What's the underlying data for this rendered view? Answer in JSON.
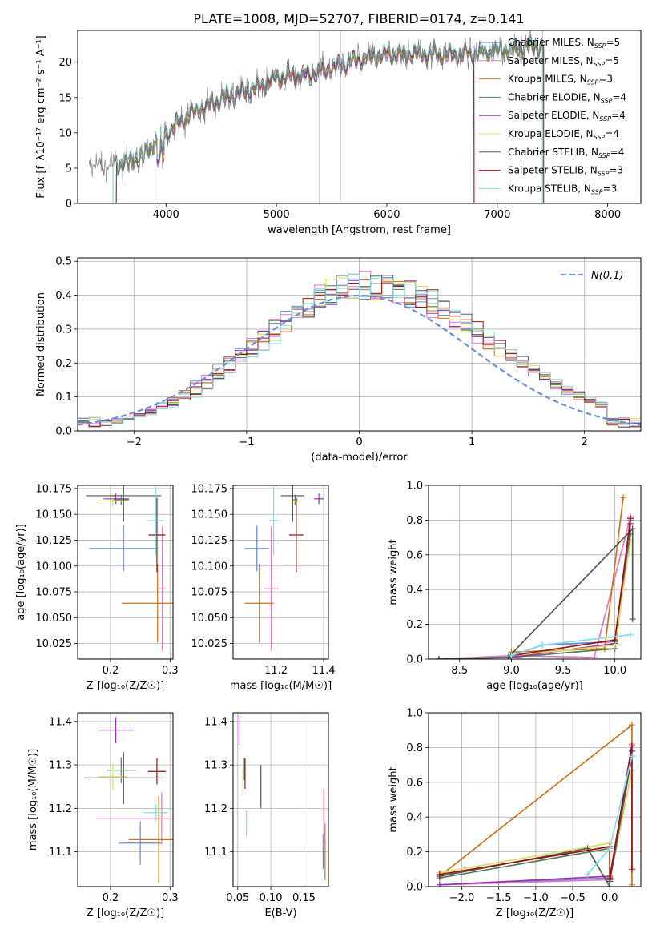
{
  "title": "PLATE=1008, MJD=52707, FIBERID=0174, z=0.141",
  "colors": {
    "chabrier_miles": "#6688cc",
    "salpeter_miles": "#e377c2",
    "kroupa_miles": "#c8741c",
    "chabrier_elodie": "#4f7f4f",
    "salpeter_elodie": "#9b30b8",
    "kroupa_elodie": "#d8e060",
    "chabrier_stelib": "#555555",
    "salpeter_stelib": "#a01010",
    "kroupa_stelib": "#7fdde6",
    "normal_curve": "#6a8ed8",
    "grid": "#b0b0b0",
    "spec_gray": "#777777"
  },
  "chart_data": [
    {
      "id": "spectrum",
      "type": "line",
      "xlabel": "wavelength [Angstrom, rest frame]",
      "ylabel": "Flux [f_λ10⁻¹⁷ erg cm⁻² s⁻¹ A⁻¹]",
      "xlim": [
        3200,
        8300
      ],
      "ylim": [
        0,
        24.5
      ],
      "xticks": [
        "4000",
        "5000",
        "6000",
        "7000",
        "8000"
      ],
      "yticks": [
        "0",
        "5",
        "10",
        "15",
        "20"
      ],
      "grid": false,
      "legend_position": "right",
      "legend": [
        {
          "sub": "Chabrier MILES, N",
          "subscript": "SSP",
          "tail": "=5"
        },
        {
          "sub": "Salpeter MILES, N",
          "subscript": "SSP",
          "tail": "=5"
        },
        {
          "sub": "Kroupa MILES, N",
          "subscript": "SSP",
          "tail": "=3"
        },
        {
          "sub": "Chabrier ELODIE, N",
          "subscript": "SSP",
          "tail": "=4"
        },
        {
          "sub": "Salpeter ELODIE, N",
          "subscript": "SSP",
          "tail": "=4"
        },
        {
          "sub": "Kroupa ELODIE, N",
          "subscript": "SSP",
          "tail": "=4"
        },
        {
          "sub": "Chabrier STELIB, N",
          "subscript": "SSP",
          "tail": "=4"
        },
        {
          "sub": "Salpeter STELIB, N",
          "subscript": "SSP",
          "tail": "=3"
        },
        {
          "sub": "Kroupa STELIB, N",
          "subscript": "SSP",
          "tail": "=3"
        }
      ],
      "continuum_knots": [
        [
          3300,
          5.3
        ],
        [
          3600,
          5.6
        ],
        [
          3800,
          6.8
        ],
        [
          3950,
          9.5
        ],
        [
          4200,
          12.5
        ],
        [
          4500,
          14.8
        ],
        [
          4800,
          16.2
        ],
        [
          5000,
          17.8
        ],
        [
          5300,
          18.2
        ],
        [
          5500,
          19.2
        ],
        [
          5800,
          20.5
        ],
        [
          6000,
          21.0
        ],
        [
          6300,
          21.2
        ],
        [
          6600,
          21.0
        ],
        [
          6900,
          21.5
        ],
        [
          7200,
          22.0
        ],
        [
          7400,
          22.3
        ]
      ],
      "data_range": [
        3300,
        7420
      ],
      "model_ranges": [
        [
          3550,
          7420
        ],
        [
          3900,
          6790
        ],
        [
          3520,
          7400
        ]
      ]
    },
    {
      "id": "residuals",
      "type": "histogram",
      "xlabel": "(data-model)/error",
      "ylabel": "Normed distribution",
      "xlim": [
        -2.5,
        2.5
      ],
      "ylim": [
        0,
        0.51
      ],
      "xticks": [
        "−2",
        "−1",
        "0",
        "1",
        "2"
      ],
      "yticks": [
        "0.0",
        "0.1",
        "0.2",
        "0.3",
        "0.4",
        "0.5"
      ],
      "grid": true,
      "bin_width": 0.1,
      "legend_label": "N(0,1)",
      "jitter_scale": 0.12
    },
    {
      "id": "age_vs_Z",
      "type": "errorbar",
      "xlabel": "Z [log₁₀(Z/Z☉)]",
      "ylabel": "age  [log₁₀(age/yr)]",
      "xlim": [
        0.145,
        0.305
      ],
      "ylim": [
        10.01,
        10.178
      ],
      "xticks": [
        "0.2",
        "0.3"
      ],
      "yticks": [
        "10.025",
        "10.050",
        "10.075",
        "10.100",
        "10.125",
        "10.150",
        "10.175"
      ],
      "grid": true,
      "points": [
        {
          "key": "chabrier_miles",
          "x": 0.222,
          "xe": 0.058,
          "y": 10.117,
          "ye": 0.022
        },
        {
          "key": "salpeter_miles",
          "x": 0.287,
          "xe": 0.005,
          "y": 10.078,
          "ye": 0.06
        },
        {
          "key": "kroupa_miles",
          "x": 0.279,
          "xe": 0.06,
          "y": 10.064,
          "ye": 0.038
        },
        {
          "key": "chabrier_elodie",
          "x": 0.218,
          "xe": 0.013,
          "y": 10.164,
          "ye": 0.005
        },
        {
          "key": "salpeter_elodie",
          "x": 0.209,
          "xe": 0.022,
          "y": 10.165,
          "ye": 0.005
        },
        {
          "key": "kroupa_elodie",
          "x": 0.204,
          "xe": 0.025,
          "y": 10.163,
          "ye": 0.006
        },
        {
          "key": "chabrier_stelib",
          "x": 0.222,
          "xe": 0.063,
          "y": 10.168,
          "ye": 0.025
        },
        {
          "key": "salpeter_stelib",
          "x": 0.278,
          "xe": 0.014,
          "y": 10.13,
          "ye": 0.036
        },
        {
          "key": "kroupa_stelib",
          "x": 0.276,
          "xe": 0.014,
          "y": 10.144,
          "ye": 0.033
        }
      ]
    },
    {
      "id": "age_vs_mass",
      "type": "errorbar",
      "xlabel": "mass [log₁₀(M/M☉)]",
      "ylabel": "",
      "xlim": [
        11.02,
        11.42
      ],
      "ylim": [
        10.01,
        10.178
      ],
      "xticks": [
        "11.2",
        "11.4"
      ],
      "yticks": [
        "10.025",
        "10.050",
        "10.075",
        "10.100",
        "10.125",
        "10.150",
        "10.175"
      ],
      "grid": true,
      "points": [
        {
          "key": "chabrier_miles",
          "x": 11.12,
          "xe": 0.05,
          "y": 10.117,
          "ye": 0.022
        },
        {
          "key": "salpeter_miles",
          "x": 11.18,
          "xe": 0.03,
          "y": 10.078,
          "ye": 0.06
        },
        {
          "key": "kroupa_miles",
          "x": 11.13,
          "xe": 0.06,
          "y": 10.064,
          "ye": 0.038
        },
        {
          "key": "chabrier_elodie",
          "x": 11.28,
          "xe": 0.01,
          "y": 10.164,
          "ye": 0.005
        },
        {
          "key": "salpeter_elodie",
          "x": 11.38,
          "xe": 0.02,
          "y": 10.165,
          "ye": 0.005
        },
        {
          "key": "kroupa_elodie",
          "x": 11.27,
          "xe": 0.02,
          "y": 10.163,
          "ye": 0.006
        },
        {
          "key": "chabrier_stelib",
          "x": 11.27,
          "xe": 0.05,
          "y": 10.168,
          "ye": 0.025
        },
        {
          "key": "salpeter_stelib",
          "x": 11.285,
          "xe": 0.03,
          "y": 10.13,
          "ye": 0.036
        },
        {
          "key": "kroupa_stelib",
          "x": 11.19,
          "xe": 0.02,
          "y": 10.144,
          "ye": 0.033
        }
      ]
    },
    {
      "id": "weight_vs_age",
      "type": "line",
      "xlabel": "age  [log₁₀(age/yr)]",
      "ylabel": "mass weight",
      "xlim": [
        8.2,
        10.25
      ],
      "ylim": [
        0,
        1
      ],
      "xticks": [
        "8.5",
        "9.0",
        "9.5",
        "10.0"
      ],
      "yticks": [
        "0.0",
        "0.2",
        "0.4",
        "0.6",
        "0.8",
        "1.0"
      ],
      "grid": true,
      "series": [
        {
          "key": "chabrier_miles",
          "x": [
            9.0,
            9.3,
            10.0,
            10.15
          ],
          "y": [
            0.02,
            0.08,
            0.1,
            0.8
          ]
        },
        {
          "key": "salpeter_miles",
          "x": [
            8.3,
            9.0,
            9.8,
            10.15
          ],
          "y": [
            0.0,
            0.02,
            0.01,
            0.82
          ]
        },
        {
          "key": "kroupa_miles",
          "x": [
            9.0,
            9.9,
            10.08
          ],
          "y": [
            0.04,
            0.06,
            0.93
          ]
        },
        {
          "key": "chabrier_elodie",
          "x": [
            8.3,
            9.0,
            10.0,
            10.15
          ],
          "y": [
            0.0,
            0.01,
            0.06,
            0.72
          ]
        },
        {
          "key": "salpeter_elodie",
          "x": [
            9.0,
            10.0,
            10.15
          ],
          "y": [
            0.01,
            0.09,
            0.78
          ]
        },
        {
          "key": "kroupa_elodie",
          "x": [
            9.0,
            10.0,
            10.15
          ],
          "y": [
            0.02,
            0.08,
            0.68
          ]
        },
        {
          "key": "chabrier_stelib",
          "x": [
            8.3,
            8.97,
            10.17,
            10.17
          ],
          "y": [
            0.0,
            0.01,
            0.75,
            0.23
          ]
        },
        {
          "key": "salpeter_stelib",
          "x": [
            9.0,
            10.0,
            10.15
          ],
          "y": [
            0.02,
            0.11,
            0.81
          ]
        },
        {
          "key": "kroupa_stelib",
          "x": [
            9.0,
            9.3,
            10.15
          ],
          "y": [
            0.02,
            0.08,
            0.14
          ]
        }
      ]
    },
    {
      "id": "mass_vs_Z",
      "type": "errorbar",
      "xlabel": "Z [log₁₀(Z/Z☉)]",
      "ylabel": "mass [log₁₀(M/M☉)]",
      "xlim": [
        0.145,
        0.305
      ],
      "ylim": [
        11.02,
        11.42
      ],
      "xticks": [
        "0.2",
        "0.3"
      ],
      "yticks": [
        "11.1",
        "11.2",
        "11.3",
        "11.4"
      ],
      "grid": true,
      "points": [
        {
          "key": "chabrier_miles",
          "x": 0.25,
          "xe": 0.036,
          "y": 11.12,
          "ye": 0.05
        },
        {
          "key": "salpeter_miles",
          "x": 0.286,
          "xe": 0.11,
          "y": 11.177,
          "ye": 0.06
        },
        {
          "key": "kroupa_miles",
          "x": 0.281,
          "xe": 0.05,
          "y": 11.128,
          "ye": 0.1
        },
        {
          "key": "chabrier_elodie",
          "x": 0.218,
          "xe": 0.025,
          "y": 11.288,
          "ye": 0.03
        },
        {
          "key": "salpeter_elodie",
          "x": 0.209,
          "xe": 0.03,
          "y": 11.38,
          "ye": 0.03
        },
        {
          "key": "kroupa_elodie",
          "x": 0.204,
          "xe": 0.025,
          "y": 11.273,
          "ye": 0.03
        },
        {
          "key": "chabrier_stelib",
          "x": 0.222,
          "xe": 0.065,
          "y": 11.27,
          "ye": 0.06
        },
        {
          "key": "salpeter_stelib",
          "x": 0.278,
          "xe": 0.015,
          "y": 11.285,
          "ye": 0.03
        },
        {
          "key": "kroupa_stelib",
          "x": 0.276,
          "xe": 0.02,
          "y": 11.19,
          "ye": 0.02
        }
      ]
    },
    {
      "id": "mass_vs_ebv",
      "type": "errorbar",
      "xlabel": "E(B-V)",
      "ylabel": "",
      "xlim": [
        0.043,
        0.187
      ],
      "ylim": [
        11.02,
        11.42
      ],
      "xticks": [
        "0.05",
        "0.10",
        "0.15"
      ],
      "yticks": [
        "11.1",
        "11.2",
        "11.3",
        "11.4"
      ],
      "grid": true,
      "points": [
        {
          "key": "chabrier_miles",
          "x": 0.179,
          "xe": 0.0,
          "y": 11.1,
          "ye": 0.04
        },
        {
          "key": "salpeter_miles",
          "x": 0.18,
          "xe": 0.0,
          "y": 11.18,
          "ye": 0.065
        },
        {
          "key": "kroupa_miles",
          "x": 0.182,
          "xe": 0.0,
          "y": 11.1,
          "ye": 0.065
        },
        {
          "key": "chabrier_elodie",
          "x": 0.06,
          "xe": 0.0,
          "y": 11.29,
          "ye": 0.025
        },
        {
          "key": "salpeter_elodie",
          "x": 0.052,
          "xe": 0.0,
          "y": 11.38,
          "ye": 0.035
        },
        {
          "key": "kroupa_elodie",
          "x": 0.058,
          "xe": 0.0,
          "y": 11.26,
          "ye": 0.03
        },
        {
          "key": "chabrier_stelib",
          "x": 0.085,
          "xe": 0.0,
          "y": 11.25,
          "ye": 0.05
        },
        {
          "key": "salpeter_stelib",
          "x": 0.061,
          "xe": 0.0,
          "y": 11.28,
          "ye": 0.035
        },
        {
          "key": "kroupa_stelib",
          "x": 0.063,
          "xe": 0.0,
          "y": 11.165,
          "ye": 0.03
        }
      ]
    },
    {
      "id": "weight_vs_Z",
      "type": "line",
      "xlabel": "Z [log₁₀(Z/Z☉)]",
      "ylabel": "mass weight",
      "xlim": [
        -2.45,
        0.42
      ],
      "ylim": [
        0,
        1
      ],
      "xticks": [
        "−2.0",
        "−1.5",
        "−1.0",
        "−0.5",
        "0.0"
      ],
      "yticks": [
        "0.0",
        "0.2",
        "0.4",
        "0.6",
        "0.8",
        "1.0"
      ],
      "grid": true,
      "series": [
        {
          "key": "chabrier_miles",
          "x": [
            -2.3,
            0.0,
            0.0,
            0.3
          ],
          "y": [
            0.01,
            0.05,
            0.04,
            0.78
          ]
        },
        {
          "key": "salpeter_miles",
          "x": [
            -2.3,
            0.0,
            0.3
          ],
          "y": [
            0.01,
            0.04,
            0.82
          ]
        },
        {
          "key": "kroupa_miles",
          "x": [
            -2.3,
            0.3,
            0.3
          ],
          "y": [
            0.06,
            0.93,
            0.01
          ]
        },
        {
          "key": "chabrier_elodie",
          "x": [
            -2.3,
            0.0,
            0.0,
            0.3
          ],
          "y": [
            0.05,
            0.22,
            0.04,
            0.67
          ]
        },
        {
          "key": "salpeter_elodie",
          "x": [
            -2.3,
            0.0,
            0.0,
            0.3
          ],
          "y": [
            0.01,
            0.06,
            0.03,
            0.78
          ]
        },
        {
          "key": "kroupa_elodie",
          "x": [
            -2.3,
            0.0,
            0.0,
            0.3
          ],
          "y": [
            0.08,
            0.25,
            0.05,
            0.67
          ]
        },
        {
          "key": "chabrier_stelib",
          "x": [
            -2.3,
            -0.3,
            0.0,
            0.0,
            0.3
          ],
          "y": [
            0.06,
            0.22,
            0.0,
            0.03,
            0.75
          ]
        },
        {
          "key": "salpeter_stelib",
          "x": [
            -2.3,
            0.0,
            0.0,
            0.3,
            0.3
          ],
          "y": [
            0.07,
            0.23,
            0.05,
            0.81,
            0.1
          ]
        },
        {
          "key": "kroupa_stelib",
          "x": [
            -0.3,
            0.0,
            0.3
          ],
          "y": [
            0.07,
            0.22,
            0.75
          ]
        }
      ]
    }
  ]
}
